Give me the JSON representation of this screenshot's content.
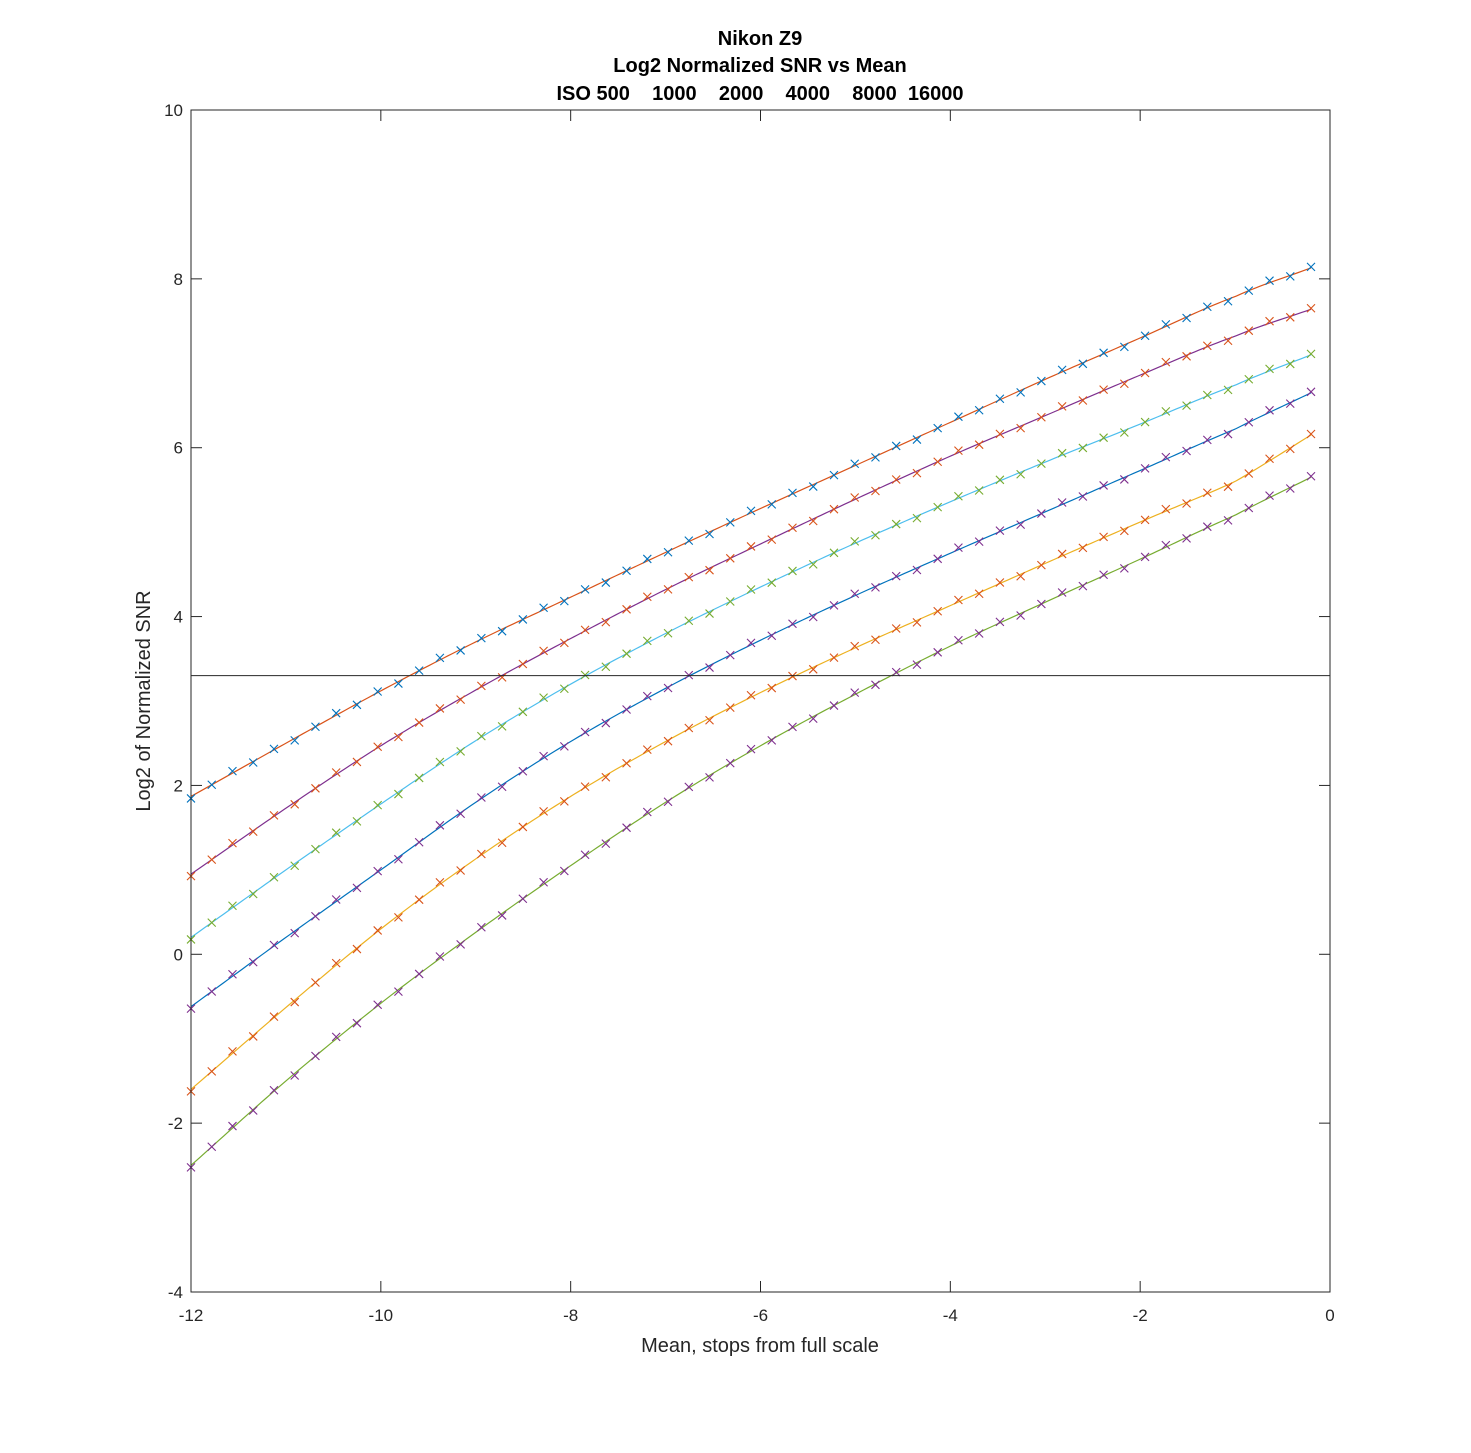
{
  "chart_data": {
    "type": "line",
    "title": [
      "Nikon Z9",
      "Log2 Normalized SNR vs Mean",
      "ISO 500    1000    2000    4000    8000  16000"
    ],
    "xlabel": "Mean, stops from full scale",
    "ylabel": "Log2 of Normalized SNR",
    "xlim": [
      -12,
      0
    ],
    "ylim": [
      -4,
      10
    ],
    "xticks": [
      -12,
      -10,
      -8,
      -6,
      -4,
      -2,
      0
    ],
    "yticks": [
      -4,
      -2,
      0,
      2,
      4,
      6,
      8,
      10
    ],
    "grid": false,
    "legend": "none",
    "reference_line_y": 3.3,
    "series": [
      {
        "points": [
          [
            -12,
            1.87
          ],
          [
            -11,
            2.5
          ],
          [
            -10,
            3.12
          ],
          [
            -9,
            3.7
          ],
          [
            -8,
            4.23
          ],
          [
            -7,
            4.76
          ],
          [
            -6,
            5.28
          ],
          [
            -5,
            5.79
          ],
          [
            -4,
            6.3
          ],
          [
            -3,
            6.81
          ],
          [
            -2,
            7.3
          ],
          [
            -1,
            7.79
          ],
          [
            -0.2,
            8.13
          ]
        ],
        "line_color": "#D95319",
        "marker_color": "#0072BD"
      },
      {
        "points": [
          [
            -12,
            0.95
          ],
          [
            -11,
            1.73
          ],
          [
            -10,
            2.47
          ],
          [
            -9,
            3.13
          ],
          [
            -8,
            3.74
          ],
          [
            -7,
            4.32
          ],
          [
            -6,
            4.86
          ],
          [
            -5,
            5.39
          ],
          [
            -4,
            5.9
          ],
          [
            -3,
            6.38
          ],
          [
            -2,
            6.86
          ],
          [
            -1,
            7.32
          ],
          [
            -0.2,
            7.64
          ]
        ],
        "line_color": "#7E2F8E",
        "marker_color": "#D95319"
      },
      {
        "points": [
          [
            -12,
            0.2
          ],
          [
            -11,
            1.0
          ],
          [
            -10,
            1.78
          ],
          [
            -9,
            2.53
          ],
          [
            -8,
            3.2
          ],
          [
            -7,
            3.8
          ],
          [
            -6,
            4.35
          ],
          [
            -5,
            4.87
          ],
          [
            -4,
            5.36
          ],
          [
            -3,
            5.83
          ],
          [
            -2,
            6.28
          ],
          [
            -1,
            6.74
          ],
          [
            -0.2,
            7.1
          ]
        ],
        "line_color": "#4DBEEE",
        "marker_color": "#77AC30"
      },
      {
        "points": [
          [
            -12,
            -0.62
          ],
          [
            -11,
            0.2
          ],
          [
            -10,
            1.0
          ],
          [
            -9,
            1.8
          ],
          [
            -8,
            2.52
          ],
          [
            -7,
            3.15
          ],
          [
            -6,
            3.72
          ],
          [
            -5,
            4.25
          ],
          [
            -4,
            4.75
          ],
          [
            -3,
            5.24
          ],
          [
            -2,
            5.73
          ],
          [
            -1,
            6.22
          ],
          [
            -0.2,
            6.65
          ]
        ],
        "line_color": "#0072BD",
        "marker_color": "#7E2F8E"
      },
      {
        "points": [
          [
            -12,
            -1.6
          ],
          [
            -11,
            -0.63
          ],
          [
            -10,
            0.3
          ],
          [
            -9,
            1.13
          ],
          [
            -8,
            1.87
          ],
          [
            -7,
            2.52
          ],
          [
            -6,
            3.1
          ],
          [
            -5,
            3.63
          ],
          [
            -4,
            4.13
          ],
          [
            -3,
            4.63
          ],
          [
            -2,
            5.12
          ],
          [
            -1,
            5.6
          ],
          [
            -0.2,
            6.15
          ]
        ],
        "line_color": "#EDB120",
        "marker_color": "#D95319"
      },
      {
        "points": [
          [
            -12,
            -2.5
          ],
          [
            -11,
            -1.5
          ],
          [
            -10,
            -0.58
          ],
          [
            -9,
            0.26
          ],
          [
            -8,
            1.05
          ],
          [
            -7,
            1.8
          ],
          [
            -6,
            2.47
          ],
          [
            -5,
            3.08
          ],
          [
            -4,
            3.65
          ],
          [
            -3,
            4.17
          ],
          [
            -2,
            4.68
          ],
          [
            -1,
            5.2
          ],
          [
            -0.2,
            5.65
          ]
        ],
        "line_color": "#77AC30",
        "marker_color": "#7E2F8E"
      }
    ]
  }
}
